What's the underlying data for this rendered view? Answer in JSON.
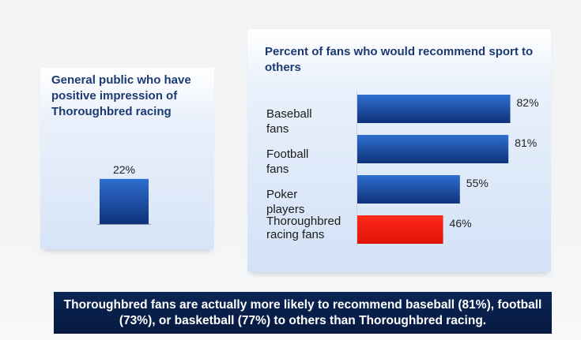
{
  "colors": {
    "title_text": "#1c3a72",
    "bar_blue_top": "#2e6fd0",
    "bar_blue_bottom": "#0f3279",
    "bar_highlight": "#f01c10",
    "banner_bg": "#0a2150",
    "banner_text": "#ffffff"
  },
  "banner_text": "Thoroughbred fans are actually more likely to recommend baseball (81%), football (73%), or basketball (77%) to others than Thoroughbred racing.",
  "chart_data": [
    {
      "type": "bar",
      "orientation": "vertical",
      "title": "General public who have positive impression of Thoroughbred racing",
      "categories": [
        ""
      ],
      "values": [
        22
      ],
      "value_labels": [
        "22%"
      ],
      "unit": "%",
      "ylim": [
        0,
        100
      ],
      "grid": false,
      "legend": "none"
    },
    {
      "type": "bar",
      "orientation": "horizontal",
      "title": "Percent of fans who would recommend sport to others",
      "categories": [
        "Baseball fans",
        "Football fans",
        "Poker players",
        "Thoroughbred racing fans"
      ],
      "category_lines": [
        [
          "Baseball",
          "fans"
        ],
        [
          "Football",
          "fans"
        ],
        [
          "Poker",
          "players"
        ],
        [
          "Thoroughbred",
          "racing fans"
        ]
      ],
      "values": [
        82,
        81,
        55,
        46
      ],
      "value_labels": [
        "82%",
        "81%",
        "55%",
        "46%"
      ],
      "highlight": [
        false,
        false,
        false,
        true
      ],
      "unit": "%",
      "xlim": [
        0,
        100
      ],
      "grid": false,
      "legend": "none"
    }
  ]
}
